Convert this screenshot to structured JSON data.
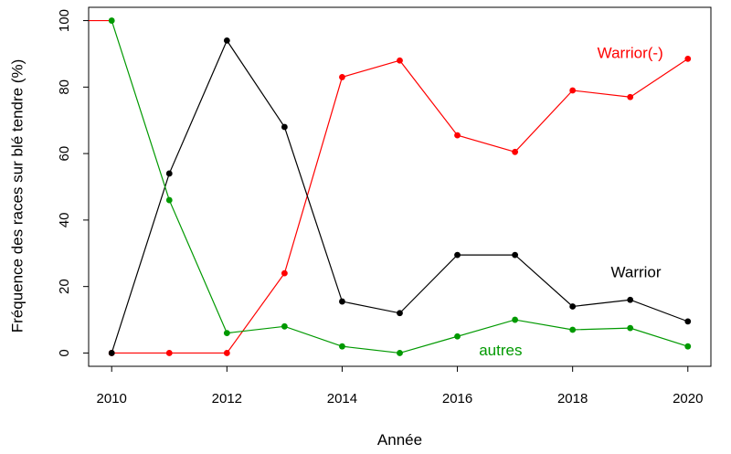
{
  "chart_data": {
    "type": "line",
    "xlabel": "Année",
    "ylabel": "Fréquence des races sur blé tendre (%)",
    "xlim": [
      2009.6,
      2020.4
    ],
    "ylim": [
      -4,
      104
    ],
    "x_ticks": [
      2010,
      2012,
      2014,
      2016,
      2018,
      2020
    ],
    "y_ticks": [
      0,
      20,
      40,
      60,
      80,
      100
    ],
    "grid": false,
    "x": [
      2010,
      2011,
      2012,
      2013,
      2014,
      2015,
      2016,
      2017,
      2018,
      2019,
      2020
    ],
    "series": [
      {
        "name": "Warrior(-)",
        "color": "#ff0000",
        "values": [
          0,
          0,
          0,
          24,
          83,
          88,
          65.5,
          60.5,
          79,
          77,
          88.5
        ],
        "label_at": [
          2019,
          90
        ]
      },
      {
        "name": "Warrior",
        "color": "#000000",
        "values": [
          0,
          54,
          94,
          68,
          15.5,
          12,
          29.5,
          29.5,
          14,
          16,
          9.5
        ],
        "label_at": [
          2019.1,
          24
        ]
      },
      {
        "name": "autres",
        "color": "#009900",
        "values": [
          100,
          46,
          6,
          8,
          2,
          0,
          5,
          10,
          7,
          7.5,
          2
        ],
        "label_at": [
          2016.75,
          0.5
        ]
      }
    ],
    "initial_segment": {
      "from": [
        2009.6,
        100
      ],
      "to": [
        2010,
        100
      ],
      "color": "#ff0000"
    }
  }
}
